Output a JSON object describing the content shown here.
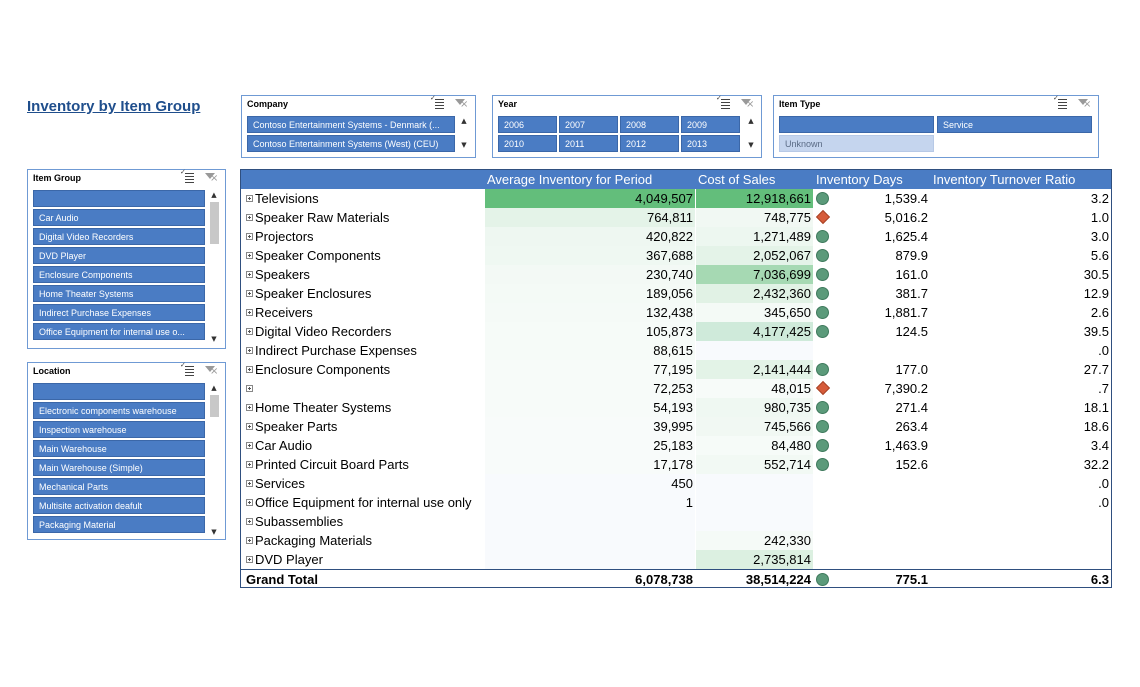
{
  "title": "Inventory by Item Group",
  "slicers": {
    "company": {
      "title": "Company",
      "items": [
        "Contoso Entertainment Systems - Denmark (...",
        "Contoso Entertainment Systems (West) (CEU)"
      ]
    },
    "year": {
      "title": "Year",
      "items": [
        "2006",
        "2007",
        "2008",
        "2009",
        "2010",
        "2011",
        "2012",
        "2013"
      ]
    },
    "item_type": {
      "title": "Item Type",
      "items": [
        "",
        "Service",
        "Unknown"
      ]
    },
    "item_group": {
      "title": "Item Group",
      "items": [
        "",
        "Car Audio",
        "Digital Video Recorders",
        "DVD Player",
        "Enclosure Components",
        "Home Theater Systems",
        "Indirect Purchase Expenses",
        "Office Equipment for internal use o..."
      ]
    },
    "location": {
      "title": "Location",
      "items": [
        "",
        "Electronic components warehouse",
        "Inspection warehouse",
        "Main Warehouse",
        "Main Warehouse (Simple)",
        "Mechanical Parts",
        "Multisite activation deafult",
        "Packaging Material"
      ]
    }
  },
  "pivot": {
    "headers": [
      "Average Inventory for Period",
      "Cost of Sales",
      "Inventory Days",
      "Inventory Turnover Ratio"
    ],
    "rows": [
      {
        "label": "Televisions",
        "avg_inv": "4,049,507",
        "cos": "12,918,661",
        "kpi": "circle",
        "days": "1,539.4",
        "ratio": "3.2",
        "inv_bg": "#63be7b",
        "cos_bg": "#63be7b"
      },
      {
        "label": "Speaker Raw Materials",
        "avg_inv": "764,811",
        "cos": "748,775",
        "kpi": "diamond",
        "days": "5,016.2",
        "ratio": "1.0",
        "inv_bg": "#e4f3e8",
        "cos_bg": "#f1f8f3"
      },
      {
        "label": "Projectors",
        "avg_inv": "420,822",
        "cos": "1,271,489",
        "kpi": "circle",
        "days": "1,625.4",
        "ratio": "3.0",
        "inv_bg": "#eef7f1",
        "cos_bg": "#edf7f0"
      },
      {
        "label": "Speaker Components",
        "avg_inv": "367,688",
        "cos": "2,052,067",
        "kpi": "circle",
        "days": "879.9",
        "ratio": "5.6",
        "inv_bg": "#eff8f2",
        "cos_bg": "#e4f3e8"
      },
      {
        "label": "Speakers",
        "avg_inv": "230,740",
        "cos": "7,036,699",
        "kpi": "circle",
        "days": "161.0",
        "ratio": "30.5",
        "inv_bg": "#f3f9f5",
        "cos_bg": "#a6d9b3"
      },
      {
        "label": "Speaker Enclosures",
        "avg_inv": "189,056",
        "cos": "2,432,360",
        "kpi": "circle",
        "days": "381.7",
        "ratio": "12.9",
        "inv_bg": "#f4faf6",
        "cos_bg": "#e1f2e5"
      },
      {
        "label": "Receivers",
        "avg_inv": "132,438",
        "cos": "345,650",
        "kpi": "circle",
        "days": "1,881.7",
        "ratio": "2.6",
        "inv_bg": "#f5faf7",
        "cos_bg": "#f4faf6"
      },
      {
        "label": "Digital Video Recorders",
        "avg_inv": "105,873",
        "cos": "4,177,425",
        "kpi": "circle",
        "days": "124.5",
        "ratio": "39.5",
        "inv_bg": "#f6fbf8",
        "cos_bg": "#cfeada"
      },
      {
        "label": "Indirect Purchase Expenses",
        "avg_inv": "88,615",
        "cos": "",
        "kpi": "",
        "days": "",
        "ratio": ".0",
        "inv_bg": "#f6fbf8",
        "cos_bg": "#f8fafd"
      },
      {
        "label": "Enclosure Components",
        "avg_inv": "77,195",
        "cos": "2,141,444",
        "kpi": "circle",
        "days": "177.0",
        "ratio": "27.7",
        "inv_bg": "#f7fbf9",
        "cos_bg": "#e3f3e7"
      },
      {
        "label": "",
        "avg_inv": "72,253",
        "cos": "48,015",
        "kpi": "diamond",
        "days": "7,390.2",
        "ratio": ".7",
        "inv_bg": "#f7fbf9",
        "cos_bg": "#f7fbf9"
      },
      {
        "label": "Home Theater Systems",
        "avg_inv": "54,193",
        "cos": "980,735",
        "kpi": "circle",
        "days": "271.4",
        "ratio": "18.1",
        "inv_bg": "#f7fbf9",
        "cos_bg": "#eff8f2"
      },
      {
        "label": "Speaker Parts",
        "avg_inv": "39,995",
        "cos": "745,566",
        "kpi": "circle",
        "days": "263.4",
        "ratio": "18.6",
        "inv_bg": "#f8fbfa",
        "cos_bg": "#f1f8f3"
      },
      {
        "label": "Car Audio",
        "avg_inv": "25,183",
        "cos": "84,480",
        "kpi": "circle",
        "days": "1,463.9",
        "ratio": "3.4",
        "inv_bg": "#f8fbfa",
        "cos_bg": "#f6fbf8"
      },
      {
        "label": "Printed Circuit Board Parts",
        "avg_inv": "17,178",
        "cos": "552,714",
        "kpi": "circle",
        "days": "152.6",
        "ratio": "32.2",
        "inv_bg": "#f8fbfa",
        "cos_bg": "#f2f9f4"
      },
      {
        "label": "Services",
        "avg_inv": "450",
        "cos": "",
        "kpi": "",
        "days": "",
        "ratio": ".0",
        "inv_bg": "#f8fafd",
        "cos_bg": "#f8fafd"
      },
      {
        "label": "Office Equipment for internal use only",
        "avg_inv": "1",
        "cos": "",
        "kpi": "",
        "days": "",
        "ratio": ".0",
        "inv_bg": "#f8fafd",
        "cos_bg": "#f8fafd"
      },
      {
        "label": "Subassemblies",
        "avg_inv": "",
        "cos": "",
        "kpi": "",
        "days": "",
        "ratio": "",
        "inv_bg": "#f8fafd",
        "cos_bg": "#f8fafd"
      },
      {
        "label": "Packaging Materials",
        "avg_inv": "",
        "cos": "242,330",
        "kpi": "",
        "days": "",
        "ratio": "",
        "inv_bg": "#f8fafd",
        "cos_bg": "#f5faf7"
      },
      {
        "label": "DVD Player",
        "avg_inv": "",
        "cos": "2,735,814",
        "kpi": "",
        "days": "",
        "ratio": "",
        "inv_bg": "#f8fafd",
        "cos_bg": "#dcf0e1"
      }
    ],
    "total": {
      "label": "Grand Total",
      "avg_inv": "6,078,738",
      "cos": "38,514,224",
      "kpi": "circle",
      "days": "775.1",
      "ratio": "6.3"
    }
  }
}
